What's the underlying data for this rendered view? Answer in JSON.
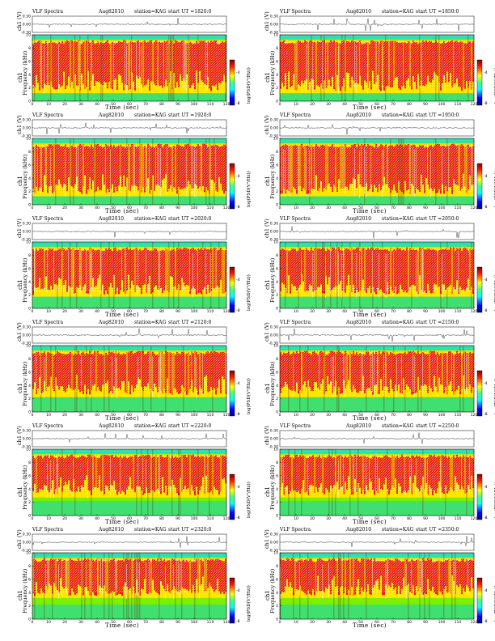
{
  "chart_data": {
    "type": "heatmap",
    "layout": "6 rows x 2 columns",
    "colormap": "jet (blue-cyan-green-yellow-red)",
    "panels": [
      {
        "title": "VLF Spectra",
        "date": "Aug82010",
        "station": "station=KAG",
        "start": "start UT =1820:0"
      },
      {
        "title": "VLF Spectra",
        "date": "Aug82010",
        "station": "station=KAG",
        "start": "start UT =1850:0"
      },
      {
        "title": "VLF Spectra",
        "date": "Aug82010",
        "station": "station=KAG",
        "start": "start UT =1920:0"
      },
      {
        "title": "VLF Spectra",
        "date": "Aug82010",
        "station": "station=KAG",
        "start": "start UT =1950:0"
      },
      {
        "title": "VLF Spectra",
        "date": "Aug82010",
        "station": "station=KAG",
        "start": "start UT =2020:0"
      },
      {
        "title": "VLF Spectra",
        "date": "Aug82010",
        "station": "station=KAG",
        "start": "start UT =2050:0"
      },
      {
        "title": "VLF Spectra",
        "date": "Aug82010",
        "station": "station=KAG",
        "start": "start UT =2120:0"
      },
      {
        "title": "VLF Spectra",
        "date": "Aug82010",
        "station": "station=KAG",
        "start": "start UT =2150:0"
      },
      {
        "title": "VLF Spectra",
        "date": "Aug82010",
        "station": "station=KAG",
        "start": "start UT =2220:0"
      },
      {
        "title": "VLF Spectra",
        "date": "Aug82010",
        "station": "station=KAG",
        "start": "start UT =2250:0"
      },
      {
        "title": "VLF Spectra",
        "date": "Aug82010",
        "station": "station=KAG",
        "start": "start UT =2320:0"
      },
      {
        "title": "VLF Spectra",
        "date": "Aug82010",
        "station": "station=KAG",
        "start": "start UT =2350:0"
      }
    ],
    "time_series": {
      "ylabel": "ch1 (V)",
      "yticks": [
        "0.30",
        "0.00",
        "-0.30"
      ],
      "ylim": [
        -0.3,
        0.3
      ]
    },
    "spectrogram": {
      "ylabel": "Frequency (kHz)",
      "ylabel_prefix": "ch1",
      "yticks": [
        0,
        2,
        4,
        6,
        8,
        10
      ],
      "ylim": [
        0,
        10
      ]
    },
    "xaxis": {
      "label": "Time (sec)",
      "ticks": [
        0,
        10,
        20,
        30,
        40,
        50,
        60,
        70,
        80,
        90,
        100,
        110,
        120
      ],
      "xlim": [
        0,
        120
      ]
    },
    "colorbar": {
      "label": "log(PSD(V²/Hz))",
      "ticks": [
        "-4",
        "-8"
      ]
    }
  }
}
